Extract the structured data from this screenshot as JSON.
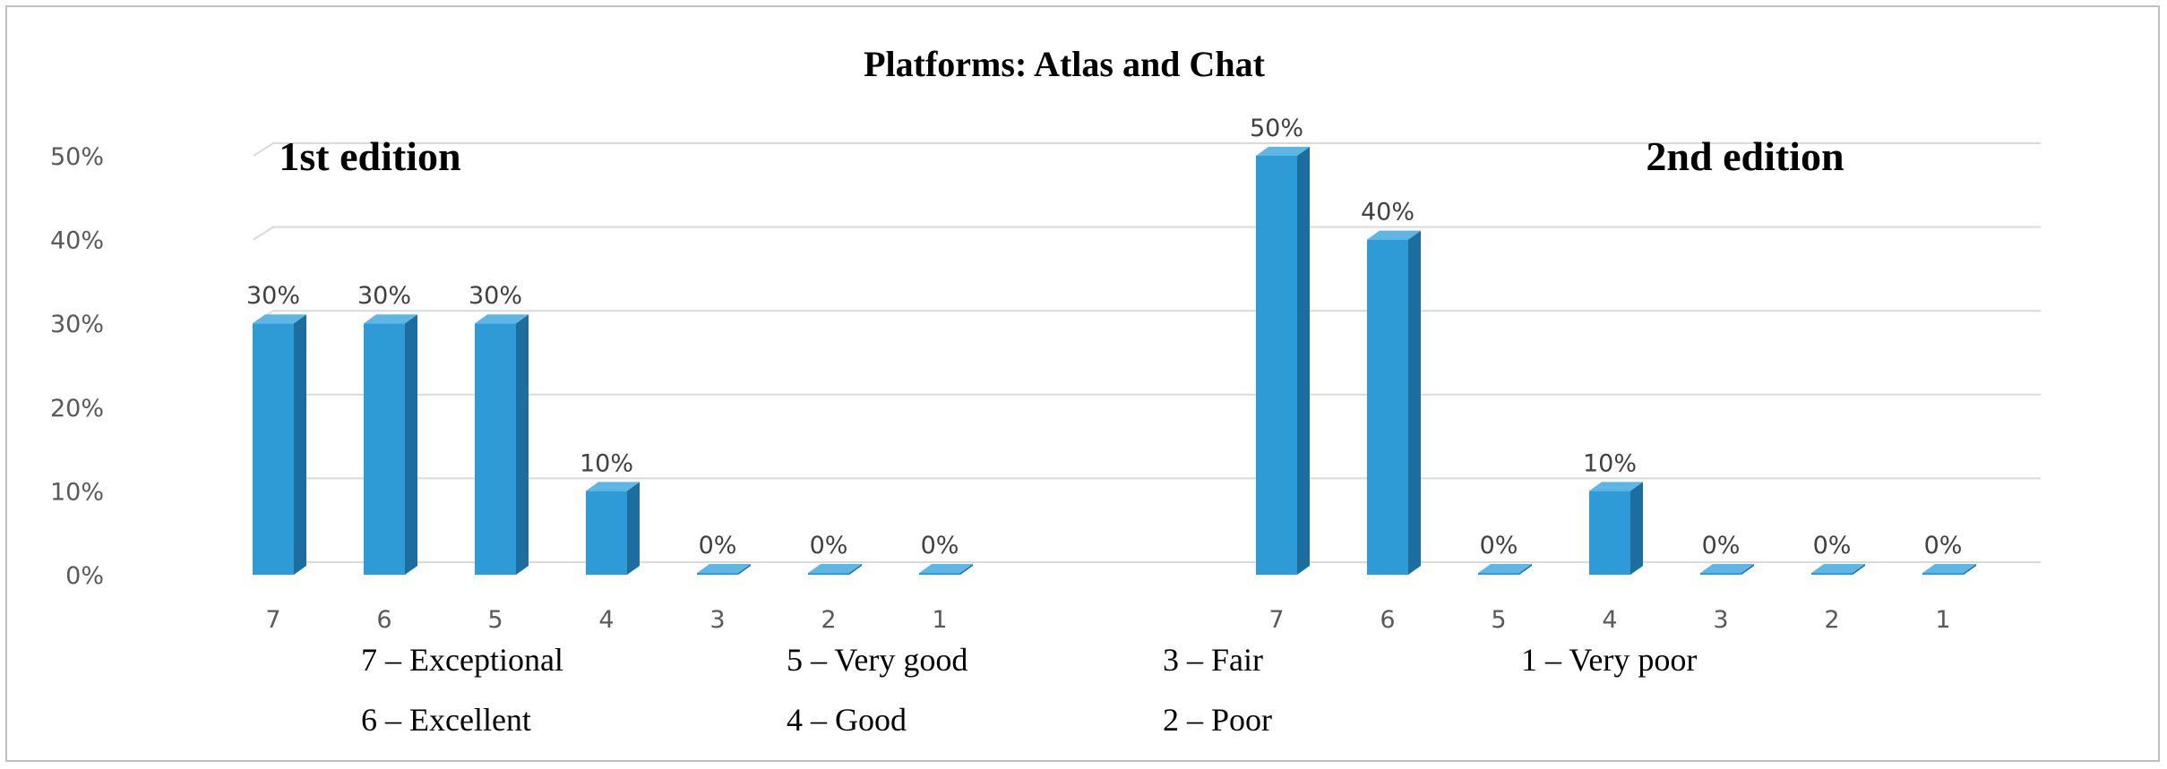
{
  "chart_data": {
    "type": "bar",
    "title": "Platforms: Atlas and Chat",
    "y_ticks": [
      "0%",
      "10%",
      "20%",
      "30%",
      "40%",
      "50%"
    ],
    "ylim": [
      0,
      50
    ],
    "grid": true,
    "colors": {
      "bar": "#2E9BD6",
      "bar_side": "#1B6E9E",
      "bar_top": "#5DB6E4"
    },
    "groups": [
      {
        "name": "1st edition",
        "categories": [
          "7",
          "6",
          "5",
          "4",
          "3",
          "2",
          "1"
        ],
        "values": [
          30,
          30,
          30,
          10,
          0,
          0,
          0
        ],
        "labels": [
          "30%",
          "30%",
          "30%",
          "10%",
          "0%",
          "0%",
          "0%"
        ]
      },
      {
        "name": "2nd edition",
        "categories": [
          "7",
          "6",
          "5",
          "4",
          "3",
          "2",
          "1"
        ],
        "values": [
          50,
          40,
          0,
          10,
          0,
          0,
          0
        ],
        "labels": [
          "50%",
          "40%",
          "0%",
          "10%",
          "0%",
          "0%",
          "0%"
        ]
      }
    ],
    "legend": [
      "7 – Exceptional",
      "6 – Excellent",
      "5 – Very good",
      "4 – Good",
      "3 – Fair",
      "2 – Poor",
      "1 – Very poor"
    ]
  }
}
